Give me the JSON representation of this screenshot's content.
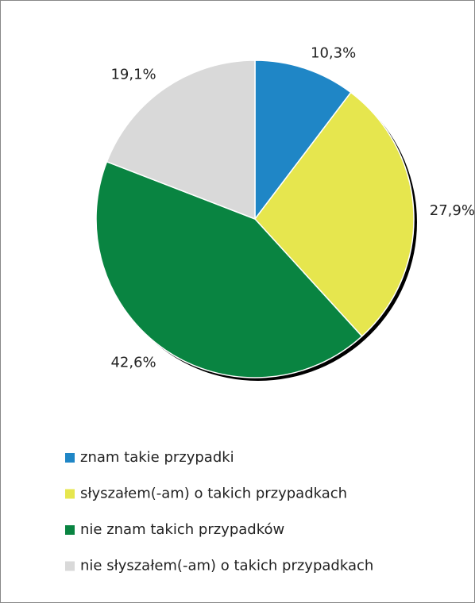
{
  "chart_data": {
    "type": "pie",
    "categories": [
      "znam takie przypadki",
      "słyszałem(-am) o takich przypadkach",
      "nie znam takich przypadków",
      "nie słyszałem(-am) o takich przypadkach"
    ],
    "values": [
      10.3,
      27.9,
      42.6,
      19.1
    ],
    "value_labels": [
      "10,3%",
      "27,9%",
      "42,6%",
      "19,1%"
    ],
    "colors": [
      "#1f86c6",
      "#e6e64e",
      "#098441",
      "#d9d9d9"
    ],
    "legend": "bottom"
  }
}
